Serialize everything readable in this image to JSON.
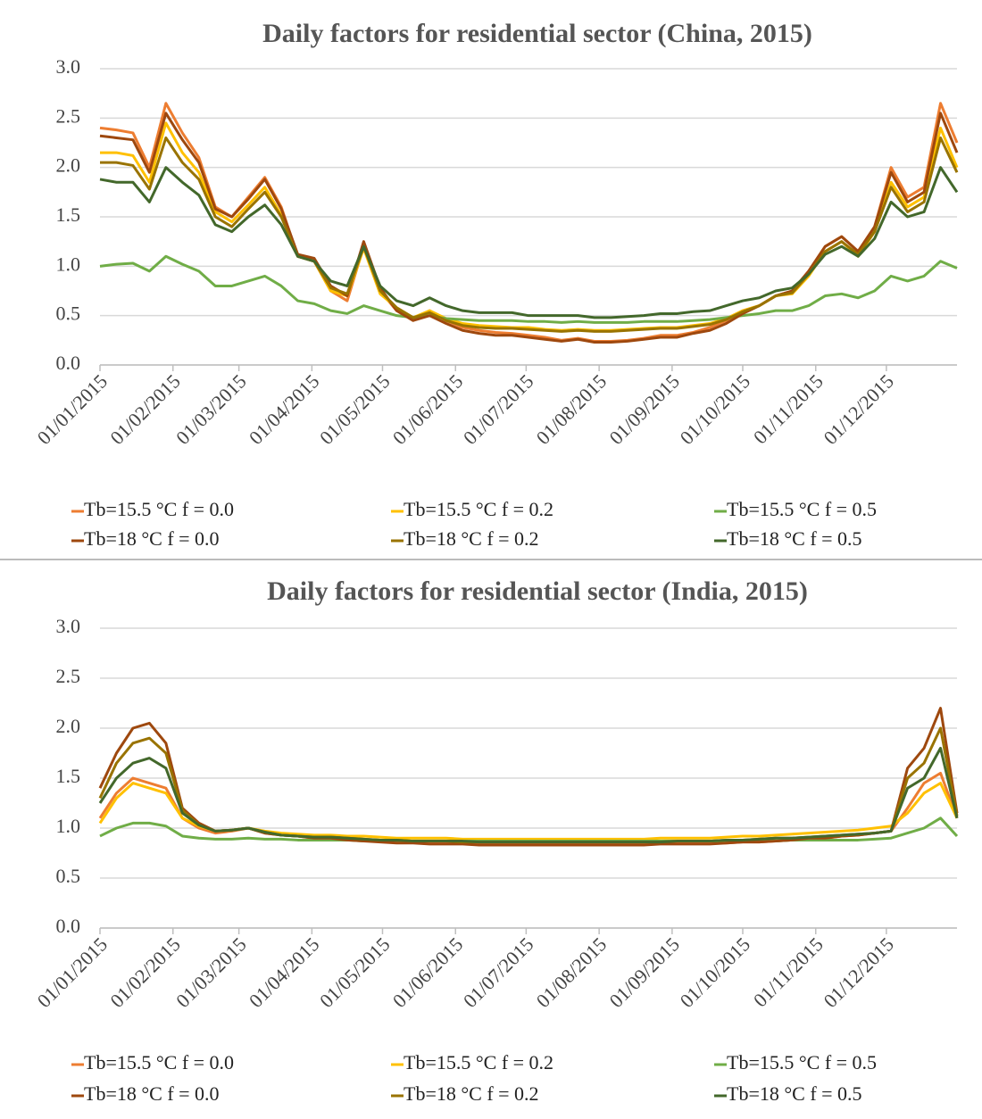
{
  "chart_data": [
    {
      "type": "line",
      "title": "Daily factors for residential sector (China, 2015)",
      "x": [
        "01/01/2015",
        "08/01/2015",
        "15/01/2015",
        "22/01/2015",
        "29/01/2015",
        "05/02/2015",
        "12/02/2015",
        "19/02/2015",
        "26/02/2015",
        "05/03/2015",
        "12/03/2015",
        "19/03/2015",
        "26/03/2015",
        "02/04/2015",
        "09/04/2015",
        "16/04/2015",
        "23/04/2015",
        "30/04/2015",
        "07/05/2015",
        "14/05/2015",
        "21/05/2015",
        "28/05/2015",
        "04/06/2015",
        "11/06/2015",
        "18/06/2015",
        "25/06/2015",
        "02/07/2015",
        "09/07/2015",
        "16/07/2015",
        "23/07/2015",
        "30/07/2015",
        "06/08/2015",
        "13/08/2015",
        "20/08/2015",
        "27/08/2015",
        "03/09/2015",
        "10/09/2015",
        "17/09/2015",
        "24/09/2015",
        "01/10/2015",
        "08/10/2015",
        "15/10/2015",
        "22/10/2015",
        "29/10/2015",
        "05/11/2015",
        "12/11/2015",
        "19/11/2015",
        "26/11/2015",
        "03/12/2015",
        "10/12/2015",
        "17/12/2015",
        "24/12/2015",
        "31/12/2015"
      ],
      "xlim": [
        "01/01/2015",
        "31/12/2015"
      ],
      "xticks": [
        "01/01/2015",
        "01/02/2015",
        "01/03/2015",
        "01/04/2015",
        "01/05/2015",
        "01/06/2015",
        "01/07/2015",
        "01/08/2015",
        "01/09/2015",
        "01/10/2015",
        "01/11/2015",
        "01/12/2015"
      ],
      "ylim": [
        0,
        3
      ],
      "yticks": [
        {
          "value": 0,
          "label": "0.0"
        },
        {
          "value": 0.5,
          "label": "0.5"
        },
        {
          "value": 1,
          "label": "1.0"
        },
        {
          "value": 1.5,
          "label": "1.5"
        },
        {
          "value": 2,
          "label": "2.0"
        },
        {
          "value": 2.5,
          "label": "2.5"
        },
        {
          "value": 3,
          "label": "3.0"
        }
      ],
      "grid": true,
      "series": [
        {
          "name": "Tb=15.5 °C f = 0.0",
          "color": "#ed7d31",
          "values": [
            2.4,
            2.38,
            2.35,
            2.0,
            2.65,
            2.35,
            2.1,
            1.6,
            1.5,
            1.7,
            1.9,
            1.6,
            1.1,
            1.05,
            0.75,
            0.65,
            1.2,
            0.75,
            0.55,
            0.45,
            0.55,
            0.45,
            0.38,
            0.35,
            0.33,
            0.32,
            0.3,
            0.28,
            0.25,
            0.27,
            0.24,
            0.24,
            0.25,
            0.27,
            0.3,
            0.3,
            0.33,
            0.38,
            0.45,
            0.55,
            0.6,
            0.7,
            0.75,
            0.95,
            1.2,
            1.3,
            1.15,
            1.4,
            2.0,
            1.7,
            1.8,
            2.65,
            2.25
          ]
        },
        {
          "name": "Tb=15.5 °C f = 0.2",
          "color": "#ffc000",
          "values": [
            2.15,
            2.15,
            2.12,
            1.85,
            2.45,
            2.15,
            1.95,
            1.55,
            1.45,
            1.62,
            1.8,
            1.52,
            1.1,
            1.05,
            0.75,
            0.7,
            1.18,
            0.72,
            0.58,
            0.48,
            0.55,
            0.47,
            0.42,
            0.4,
            0.39,
            0.38,
            0.38,
            0.36,
            0.35,
            0.36,
            0.35,
            0.35,
            0.36,
            0.37,
            0.38,
            0.38,
            0.4,
            0.42,
            0.47,
            0.55,
            0.6,
            0.7,
            0.72,
            0.9,
            1.15,
            1.25,
            1.1,
            1.35,
            1.85,
            1.6,
            1.7,
            2.4,
            2.0
          ]
        },
        {
          "name": "Tb=15.5 °C f = 0.5",
          "color": "#70ad47",
          "values": [
            1.0,
            1.02,
            1.03,
            0.95,
            1.1,
            1.02,
            0.95,
            0.8,
            0.8,
            0.85,
            0.9,
            0.8,
            0.65,
            0.62,
            0.55,
            0.52,
            0.6,
            0.55,
            0.5,
            0.48,
            0.5,
            0.47,
            0.46,
            0.45,
            0.45,
            0.45,
            0.44,
            0.44,
            0.43,
            0.44,
            0.43,
            0.43,
            0.43,
            0.44,
            0.44,
            0.44,
            0.45,
            0.46,
            0.48,
            0.5,
            0.52,
            0.55,
            0.55,
            0.6,
            0.7,
            0.72,
            0.68,
            0.75,
            0.9,
            0.85,
            0.9,
            1.05,
            0.98
          ]
        },
        {
          "name": "Tb=18 °C f = 0.0",
          "color": "#9e480e",
          "values": [
            2.32,
            2.3,
            2.28,
            1.95,
            2.55,
            2.28,
            2.05,
            1.58,
            1.5,
            1.68,
            1.88,
            1.58,
            1.12,
            1.08,
            0.8,
            0.7,
            1.25,
            0.78,
            0.55,
            0.45,
            0.5,
            0.42,
            0.35,
            0.32,
            0.3,
            0.3,
            0.28,
            0.26,
            0.24,
            0.26,
            0.23,
            0.23,
            0.24,
            0.26,
            0.28,
            0.28,
            0.32,
            0.35,
            0.42,
            0.52,
            0.6,
            0.7,
            0.75,
            0.95,
            1.2,
            1.3,
            1.15,
            1.4,
            1.95,
            1.65,
            1.75,
            2.55,
            2.15
          ]
        },
        {
          "name": "Tb=18 °C f = 0.2",
          "color": "#997300",
          "values": [
            2.05,
            2.05,
            2.02,
            1.78,
            2.3,
            2.05,
            1.88,
            1.5,
            1.4,
            1.58,
            1.75,
            1.5,
            1.1,
            1.05,
            0.78,
            0.72,
            1.2,
            0.75,
            0.58,
            0.48,
            0.53,
            0.45,
            0.4,
            0.38,
            0.37,
            0.37,
            0.36,
            0.35,
            0.34,
            0.35,
            0.34,
            0.34,
            0.35,
            0.36,
            0.37,
            0.37,
            0.39,
            0.41,
            0.46,
            0.54,
            0.6,
            0.7,
            0.73,
            0.92,
            1.15,
            1.25,
            1.12,
            1.35,
            1.8,
            1.55,
            1.65,
            2.3,
            1.95
          ]
        },
        {
          "name": "Tb=18 °C f = 0.5",
          "color": "#43682b",
          "values": [
            1.88,
            1.85,
            1.85,
            1.65,
            2.0,
            1.85,
            1.72,
            1.42,
            1.35,
            1.5,
            1.62,
            1.42,
            1.1,
            1.05,
            0.85,
            0.8,
            1.2,
            0.8,
            0.65,
            0.6,
            0.68,
            0.6,
            0.55,
            0.53,
            0.53,
            0.53,
            0.5,
            0.5,
            0.5,
            0.5,
            0.48,
            0.48,
            0.49,
            0.5,
            0.52,
            0.52,
            0.54,
            0.55,
            0.6,
            0.65,
            0.68,
            0.75,
            0.78,
            0.92,
            1.12,
            1.2,
            1.1,
            1.28,
            1.65,
            1.5,
            1.55,
            2.0,
            1.75
          ]
        }
      ]
    },
    {
      "type": "line",
      "title": "Daily factors for residential sector (India, 2015)",
      "x": [
        "01/01/2015",
        "08/01/2015",
        "15/01/2015",
        "22/01/2015",
        "29/01/2015",
        "05/02/2015",
        "12/02/2015",
        "19/02/2015",
        "26/02/2015",
        "05/03/2015",
        "12/03/2015",
        "19/03/2015",
        "26/03/2015",
        "02/04/2015",
        "09/04/2015",
        "16/04/2015",
        "23/04/2015",
        "30/04/2015",
        "07/05/2015",
        "14/05/2015",
        "21/05/2015",
        "28/05/2015",
        "04/06/2015",
        "11/06/2015",
        "18/06/2015",
        "25/06/2015",
        "02/07/2015",
        "09/07/2015",
        "16/07/2015",
        "23/07/2015",
        "30/07/2015",
        "06/08/2015",
        "13/08/2015",
        "20/08/2015",
        "27/08/2015",
        "03/09/2015",
        "10/09/2015",
        "17/09/2015",
        "24/09/2015",
        "01/10/2015",
        "08/10/2015",
        "15/10/2015",
        "22/10/2015",
        "29/10/2015",
        "05/11/2015",
        "12/11/2015",
        "19/11/2015",
        "26/11/2015",
        "03/12/2015",
        "10/12/2015",
        "17/12/2015",
        "24/12/2015",
        "31/12/2015"
      ],
      "xlim": [
        "01/01/2015",
        "31/12/2015"
      ],
      "xticks": [
        "01/01/2015",
        "01/02/2015",
        "01/03/2015",
        "01/04/2015",
        "01/05/2015",
        "01/06/2015",
        "01/07/2015",
        "01/08/2015",
        "01/09/2015",
        "01/10/2015",
        "01/11/2015",
        "01/12/2015"
      ],
      "ylim": [
        0,
        3
      ],
      "yticks": [
        {
          "value": 0,
          "label": "0.0"
        },
        {
          "value": 0.5,
          "label": "0.5"
        },
        {
          "value": 1,
          "label": "1.0"
        },
        {
          "value": 1.5,
          "label": "1.5"
        },
        {
          "value": 2,
          "label": "2.0"
        },
        {
          "value": 2.5,
          "label": "2.5"
        },
        {
          "value": 3,
          "label": "3.0"
        }
      ],
      "grid": true,
      "series": [
        {
          "name": "Tb=15.5 °C f = 0.0",
          "color": "#ed7d31",
          "values": [
            1.1,
            1.35,
            1.5,
            1.45,
            1.4,
            1.1,
            1.0,
            0.95,
            0.97,
            1.0,
            0.95,
            0.93,
            0.92,
            0.9,
            0.9,
            0.88,
            0.88,
            0.87,
            0.86,
            0.86,
            0.86,
            0.85,
            0.85,
            0.85,
            0.85,
            0.85,
            0.85,
            0.85,
            0.85,
            0.85,
            0.85,
            0.85,
            0.85,
            0.85,
            0.85,
            0.85,
            0.85,
            0.85,
            0.85,
            0.86,
            0.86,
            0.87,
            0.88,
            0.9,
            0.9,
            0.92,
            0.93,
            0.95,
            0.97,
            1.2,
            1.45,
            1.55,
            1.1
          ]
        },
        {
          "name": "Tb=15.5 °C f = 0.2",
          "color": "#ffc000",
          "values": [
            1.05,
            1.3,
            1.45,
            1.4,
            1.35,
            1.1,
            1.02,
            0.97,
            0.98,
            1.0,
            0.97,
            0.95,
            0.94,
            0.93,
            0.93,
            0.92,
            0.92,
            0.91,
            0.9,
            0.9,
            0.9,
            0.9,
            0.89,
            0.89,
            0.89,
            0.89,
            0.89,
            0.89,
            0.89,
            0.89,
            0.89,
            0.89,
            0.89,
            0.89,
            0.9,
            0.9,
            0.9,
            0.9,
            0.91,
            0.92,
            0.92,
            0.93,
            0.94,
            0.95,
            0.96,
            0.97,
            0.98,
            1.0,
            1.02,
            1.15,
            1.35,
            1.45,
            1.1
          ]
        },
        {
          "name": "Tb=15.5 °C f = 0.5",
          "color": "#70ad47",
          "values": [
            0.92,
            1.0,
            1.05,
            1.05,
            1.02,
            0.92,
            0.9,
            0.89,
            0.89,
            0.9,
            0.89,
            0.89,
            0.88,
            0.88,
            0.88,
            0.88,
            0.87,
            0.87,
            0.87,
            0.87,
            0.87,
            0.87,
            0.87,
            0.87,
            0.87,
            0.87,
            0.87,
            0.87,
            0.87,
            0.87,
            0.87,
            0.87,
            0.87,
            0.87,
            0.87,
            0.87,
            0.87,
            0.87,
            0.87,
            0.87,
            0.87,
            0.87,
            0.88,
            0.88,
            0.88,
            0.88,
            0.88,
            0.89,
            0.9,
            0.95,
            1.0,
            1.1,
            0.92
          ]
        },
        {
          "name": "Tb=18 °C f = 0.0",
          "color": "#9e480e",
          "values": [
            1.4,
            1.75,
            2.0,
            2.05,
            1.85,
            1.2,
            1.05,
            0.97,
            0.98,
            1.0,
            0.95,
            0.93,
            0.92,
            0.9,
            0.9,
            0.88,
            0.87,
            0.86,
            0.85,
            0.85,
            0.84,
            0.84,
            0.84,
            0.83,
            0.83,
            0.83,
            0.83,
            0.83,
            0.83,
            0.83,
            0.83,
            0.83,
            0.83,
            0.83,
            0.84,
            0.84,
            0.84,
            0.84,
            0.85,
            0.86,
            0.86,
            0.87,
            0.88,
            0.9,
            0.9,
            0.92,
            0.93,
            0.95,
            0.97,
            1.6,
            1.8,
            2.2,
            1.15
          ]
        },
        {
          "name": "Tb=18 °C f = 0.2",
          "color": "#997300",
          "values": [
            1.3,
            1.65,
            1.85,
            1.9,
            1.75,
            1.18,
            1.03,
            0.97,
            0.98,
            1.0,
            0.96,
            0.93,
            0.92,
            0.91,
            0.91,
            0.9,
            0.89,
            0.88,
            0.88,
            0.87,
            0.87,
            0.87,
            0.86,
            0.86,
            0.86,
            0.86,
            0.86,
            0.86,
            0.86,
            0.86,
            0.86,
            0.86,
            0.86,
            0.86,
            0.86,
            0.87,
            0.87,
            0.87,
            0.88,
            0.88,
            0.89,
            0.9,
            0.9,
            0.91,
            0.92,
            0.93,
            0.94,
            0.95,
            0.97,
            1.5,
            1.65,
            2.0,
            1.12
          ]
        },
        {
          "name": "Tb=18 °C f = 0.5",
          "color": "#43682b",
          "values": [
            1.25,
            1.5,
            1.65,
            1.7,
            1.6,
            1.15,
            1.03,
            0.97,
            0.98,
            1.0,
            0.96,
            0.93,
            0.92,
            0.91,
            0.91,
            0.9,
            0.89,
            0.88,
            0.88,
            0.87,
            0.87,
            0.87,
            0.87,
            0.86,
            0.86,
            0.86,
            0.86,
            0.86,
            0.86,
            0.86,
            0.86,
            0.86,
            0.86,
            0.86,
            0.86,
            0.87,
            0.87,
            0.87,
            0.88,
            0.88,
            0.89,
            0.9,
            0.9,
            0.91,
            0.92,
            0.93,
            0.94,
            0.95,
            0.97,
            1.4,
            1.5,
            1.8,
            1.1
          ]
        }
      ]
    }
  ]
}
